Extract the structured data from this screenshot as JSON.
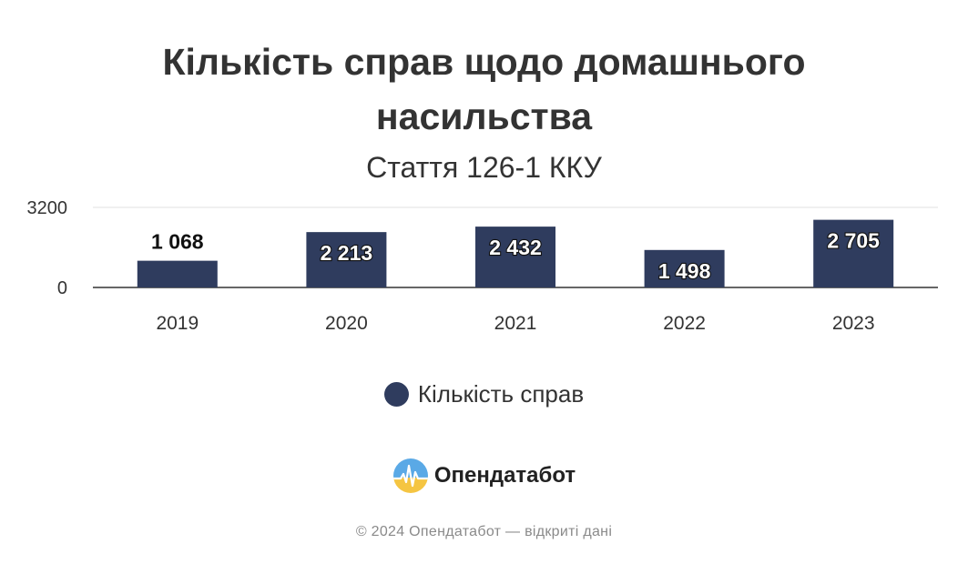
{
  "chart_data": {
    "type": "bar",
    "title": "Кількість справ щодо домашнього насильства",
    "subtitle": "Стаття 126-1 ККУ",
    "categories": [
      "2019",
      "2020",
      "2021",
      "2022",
      "2023"
    ],
    "series": [
      {
        "name": "Кількість справ",
        "values": [
          1068,
          2213,
          2432,
          1498,
          2705
        ],
        "data_labels": [
          "1 068",
          "2 213",
          "2 432",
          "1 498",
          "2 705"
        ]
      }
    ],
    "ylim": [
      0,
      3200
    ],
    "yticks": [
      "0",
      "3200"
    ],
    "xlabel": "",
    "ylabel": "",
    "grid": true,
    "legend_position": "bottom",
    "colors": {
      "bar": "#2f3c5e",
      "axis": "#333333",
      "grid": "#e6e6e6"
    }
  },
  "header": {
    "title_line1": "Кількість справ щодо домашнього",
    "title_line2": "насильства",
    "subtitle": "Стаття 126-1 ККУ"
  },
  "legend": {
    "label": "Кількість справ",
    "color": "#2f3c5e"
  },
  "brand": {
    "name": "Опендатабот",
    "logo_icon": "opendatabot-logo-icon"
  },
  "footer": {
    "text": "© 2024 Опендатабот — відкриті дані"
  }
}
